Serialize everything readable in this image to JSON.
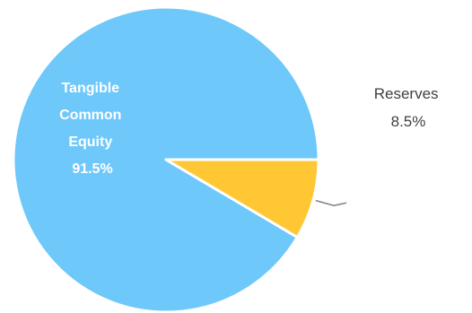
{
  "chart_data": {
    "type": "pie",
    "slices": [
      {
        "label": "Tangible Common Equity",
        "label_lines": [
          "Tangible",
          "Common",
          "Equity"
        ],
        "value": 91.5,
        "value_label": "91.5%",
        "color": "#6EC8FA",
        "label_placement": "inside"
      },
      {
        "label": "Reserves",
        "label_lines": [
          "Reserves"
        ],
        "value": 8.5,
        "value_label": "8.5%",
        "color": "#FFC734",
        "label_placement": "outside"
      }
    ],
    "start_angle_deg": 0,
    "direction": "counterclockwise",
    "slice_border_color": "#ffffff",
    "leader_line_color": "#808080"
  }
}
